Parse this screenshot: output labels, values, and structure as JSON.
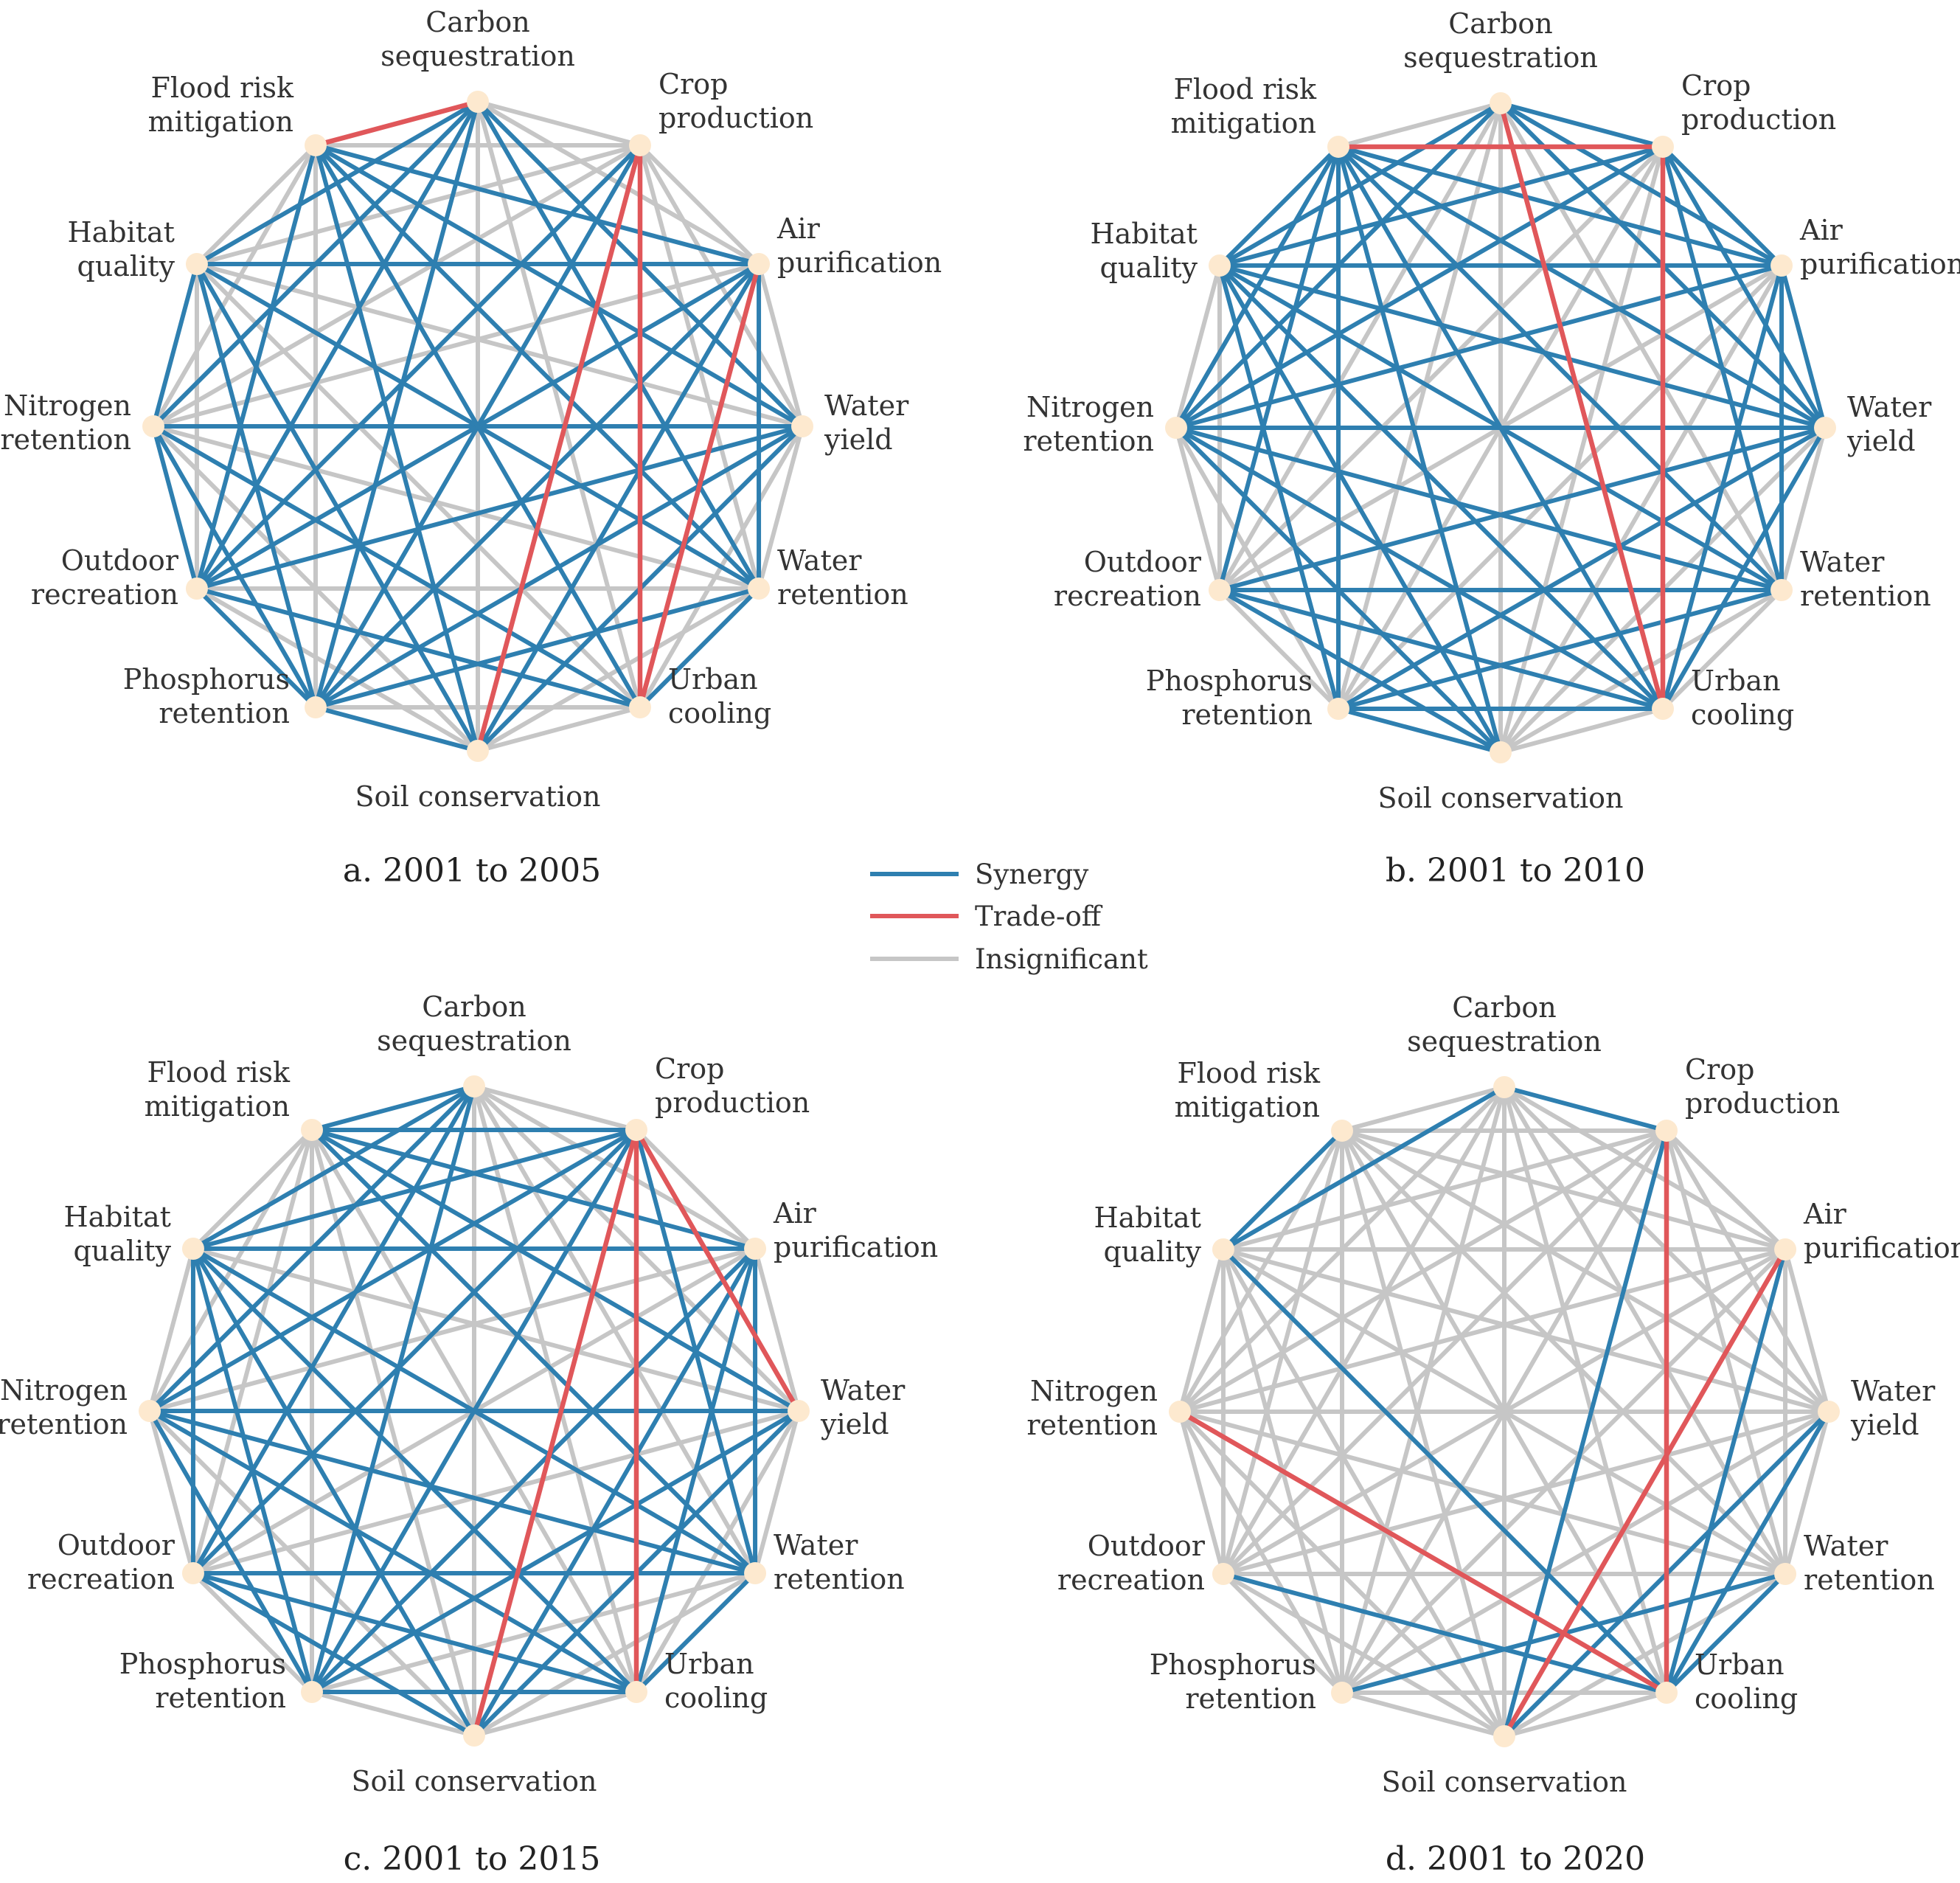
{
  "nodes": [
    "Carbon sequestration",
    "Crop production",
    "Air purification",
    "Water yield",
    "Water retention",
    "Urban cooling",
    "Soil conservation",
    "Phosphorus retention",
    "Outdoor recreation",
    "Nitrogen retention",
    "Habitat quality",
    "Flood risk mitigation"
  ],
  "node_labels": [
    [
      "Carbon",
      "sequestration"
    ],
    [
      "Crop",
      "production"
    ],
    [
      "Air",
      "purification"
    ],
    [
      "Water",
      "yield"
    ],
    [
      "Water",
      "retention"
    ],
    [
      "Urban",
      "cooling"
    ],
    [
      "Soil conservation"
    ],
    [
      "Phosphorus",
      "retention"
    ],
    [
      "Outdoor",
      "recreation"
    ],
    [
      "Nitrogen",
      "retention"
    ],
    [
      "Habitat",
      "quality"
    ],
    [
      "Flood risk",
      "mitigation"
    ]
  ],
  "legend": {
    "synergy": "Synergy",
    "tradeoff": "Trade-off",
    "insignificant": "Insignificant"
  },
  "colors": {
    "synergy": "#2e7fb0",
    "tradeoff": "#e0575a",
    "insignificant": "#c6c6c6",
    "node": "#fde9cf"
  },
  "panels": [
    {
      "caption": "a. 2001 to 2005",
      "tradeoffs": [
        [
          0,
          11
        ],
        [
          1,
          5
        ],
        [
          1,
          6
        ],
        [
          2,
          5
        ]
      ],
      "insignificant": [
        [
          0,
          1
        ],
        [
          1,
          2
        ],
        [
          1,
          3
        ],
        [
          1,
          4
        ],
        [
          1,
          9
        ],
        [
          1,
          10
        ],
        [
          1,
          11
        ],
        [
          10,
          11
        ],
        [
          3,
          10
        ],
        [
          2,
          9
        ],
        [
          4,
          6
        ],
        [
          5,
          6
        ],
        [
          6,
          8
        ],
        [
          6,
          9
        ],
        [
          4,
          8
        ],
        [
          7,
          11
        ],
        [
          0,
          6
        ],
        [
          0,
          5
        ],
        [
          5,
          7
        ],
        [
          8,
          10
        ],
        [
          9,
          11
        ],
        [
          5,
          10
        ],
        [
          4,
          9
        ],
        [
          3,
          5
        ],
        [
          3,
          4
        ],
        [
          2,
          3
        ],
        [
          0,
          2
        ]
      ]
    },
    {
      "caption": "b. 2001 to 2010",
      "tradeoffs": [
        [
          1,
          11
        ],
        [
          0,
          5
        ],
        [
          1,
          5
        ]
      ],
      "insignificant": [
        [
          0,
          11
        ],
        [
          0,
          6
        ],
        [
          0,
          7
        ],
        [
          0,
          8
        ],
        [
          0,
          4
        ],
        [
          1,
          6
        ],
        [
          1,
          7
        ],
        [
          8,
          9
        ],
        [
          7,
          8
        ],
        [
          7,
          9
        ],
        [
          8,
          10
        ],
        [
          5,
          6
        ],
        [
          2,
          6
        ],
        [
          4,
          6
        ],
        [
          3,
          6
        ],
        [
          2,
          7
        ],
        [
          4,
          5
        ],
        [
          3,
          4
        ],
        [
          9,
          10
        ],
        [
          1,
          8
        ],
        [
          2,
          8
        ]
      ]
    },
    {
      "caption": "c. 2001 to 2015",
      "tradeoffs": [
        [
          1,
          3
        ],
        [
          1,
          5
        ],
        [
          1,
          6
        ]
      ],
      "insignificant": [
        [
          0,
          2
        ],
        [
          0,
          3
        ],
        [
          0,
          4
        ],
        [
          0,
          5
        ],
        [
          0,
          6
        ],
        [
          0,
          1
        ],
        [
          1,
          2
        ],
        [
          2,
          3
        ],
        [
          3,
          4
        ],
        [
          3,
          5
        ],
        [
          3,
          10
        ],
        [
          3,
          8
        ],
        [
          10,
          11
        ],
        [
          9,
          11
        ],
        [
          8,
          9
        ],
        [
          7,
          8
        ],
        [
          6,
          7
        ],
        [
          5,
          6
        ],
        [
          4,
          7
        ],
        [
          4,
          6
        ],
        [
          2,
          8
        ],
        [
          2,
          9
        ],
        [
          7,
          11
        ],
        [
          6,
          11
        ],
        [
          5,
          11
        ],
        [
          8,
          11
        ],
        [
          6,
          9
        ],
        [
          9,
          10
        ]
      ]
    },
    {
      "caption": "d. 2001 to 2020",
      "tradeoffs": [
        [
          1,
          5
        ],
        [
          2,
          6
        ],
        [
          5,
          9
        ]
      ],
      "insignificant": [
        [
          0,
          2
        ],
        [
          0,
          3
        ],
        [
          0,
          4
        ],
        [
          0,
          5
        ],
        [
          0,
          6
        ],
        [
          0,
          7
        ],
        [
          0,
          8
        ],
        [
          0,
          9
        ],
        [
          1,
          2
        ],
        [
          1,
          3
        ],
        [
          1,
          4
        ],
        [
          1,
          8
        ],
        [
          1,
          9
        ],
        [
          1,
          10
        ],
        [
          2,
          3
        ],
        [
          2,
          4
        ],
        [
          2,
          7
        ],
        [
          2,
          8
        ],
        [
          2,
          9
        ],
        [
          2,
          10
        ],
        [
          2,
          11
        ],
        [
          3,
          4
        ],
        [
          3,
          7
        ],
        [
          3,
          8
        ],
        [
          3,
          9
        ],
        [
          3,
          10
        ],
        [
          3,
          11
        ],
        [
          4,
          6
        ],
        [
          4,
          8
        ],
        [
          4,
          9
        ],
        [
          4,
          10
        ],
        [
          4,
          11
        ],
        [
          5,
          6
        ],
        [
          5,
          7
        ],
        [
          6,
          7
        ],
        [
          6,
          8
        ],
        [
          6,
          9
        ],
        [
          6,
          10
        ],
        [
          6,
          11
        ],
        [
          7,
          8
        ],
        [
          7,
          9
        ],
        [
          7,
          10
        ],
        [
          7,
          11
        ],
        [
          8,
          9
        ],
        [
          8,
          10
        ],
        [
          8,
          11
        ],
        [
          9,
          10
        ],
        [
          9,
          11
        ],
        [
          5,
          11
        ],
        [
          1,
          7
        ],
        [
          1,
          11
        ],
        [
          0,
          11
        ]
      ]
    }
  ]
}
